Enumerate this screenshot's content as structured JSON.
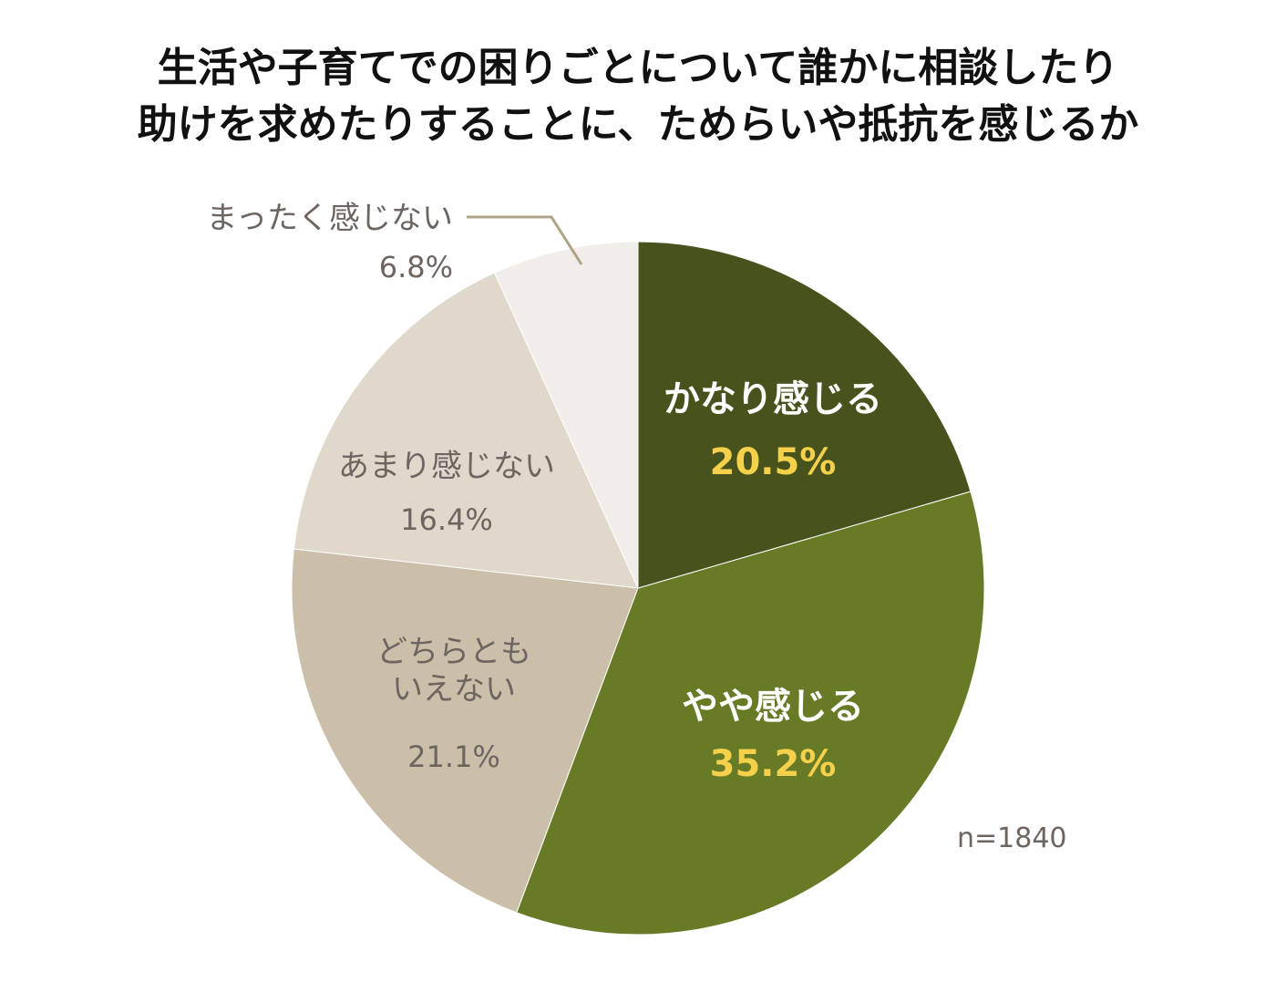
{
  "chart_data": {
    "type": "pie",
    "title": [
      "生活や子育てでの困りごとについて誰かに相談したり",
      "助けを求めたりすることに、ためらいや抵抗を感じるか"
    ],
    "categories": [
      "かなり感じる",
      "やや感じる",
      "どちらともいえない",
      "あまり感じない",
      "まったく感じない"
    ],
    "values": [
      20.5,
      35.2,
      21.1,
      16.4,
      6.8
    ],
    "value_labels": [
      "20.5%",
      "35.2%",
      "21.1%",
      "16.4%",
      "6.8%"
    ],
    "colors": [
      "#47521c",
      "#677a26",
      "#cbbfaa",
      "#e0d8cb",
      "#f1eee9"
    ],
    "annotation": "n=1840"
  }
}
